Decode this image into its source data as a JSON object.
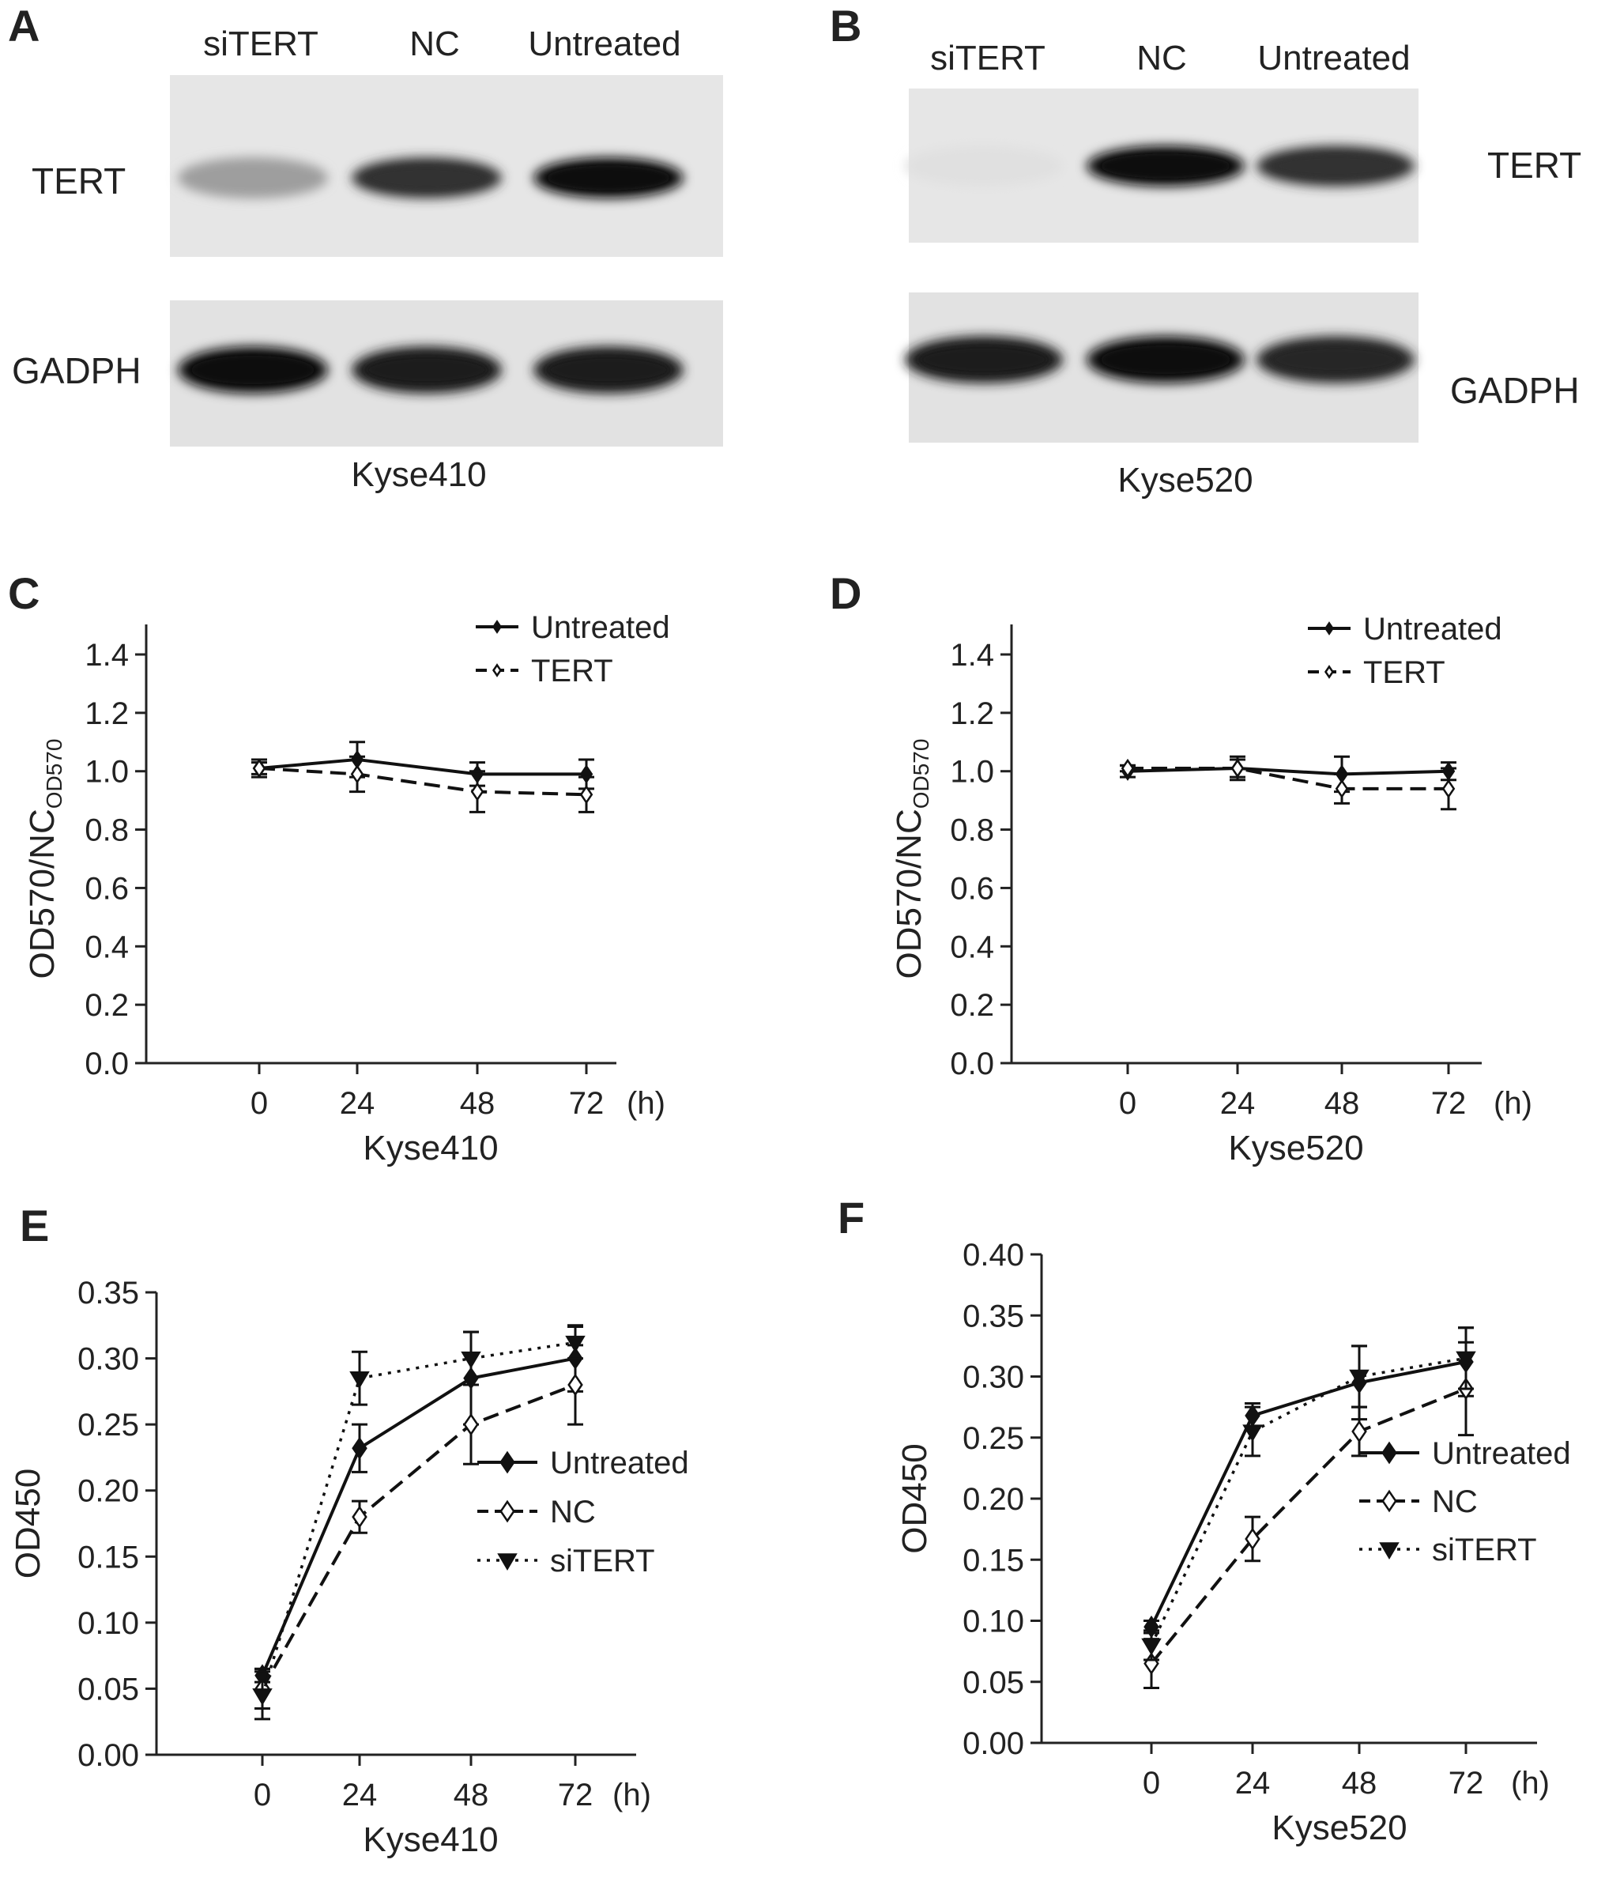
{
  "panels": {
    "A": {
      "letter": "A",
      "lanes": [
        "siTERT",
        "NC",
        "Untreated"
      ],
      "bands": [
        "TERT",
        "GADPH"
      ],
      "cell_line": "Kyse410",
      "band_intensity": {
        "TERT": [
          0.35,
          0.85,
          1.0
        ],
        "GADPH": [
          1.0,
          0.95,
          0.95
        ]
      }
    },
    "B": {
      "letter": "B",
      "lanes": [
        "siTERT",
        "NC",
        "Untreated"
      ],
      "bands": [
        "TERT",
        "GADPH"
      ],
      "cell_line": "Kyse520",
      "band_intensity": {
        "TERT": [
          0.05,
          1.0,
          0.85
        ],
        "GADPH": [
          0.95,
          1.0,
          0.9
        ]
      }
    }
  },
  "chart_data": [
    {
      "panel": "C",
      "type": "line",
      "x": [
        0,
        24,
        48,
        72
      ],
      "x_unit": "(h)",
      "xlabel": "Kyse410",
      "ylabel_main": "OD570/NC",
      "ylabel_sub": "OD570",
      "ylim": [
        0.0,
        1.4
      ],
      "yticks": [
        "0.0",
        "0.2",
        "0.4",
        "0.6",
        "0.8",
        "1.0",
        "1.2",
        "1.4"
      ],
      "grid": false,
      "legend_position": "top-right",
      "series": [
        {
          "name": "Untreated",
          "style": "solid",
          "marker": "filled-diamond",
          "values": [
            1.01,
            1.04,
            0.99,
            0.99
          ],
          "errors": [
            0.03,
            0.06,
            0.04,
            0.05
          ]
        },
        {
          "name": "TERT",
          "style": "dashed",
          "marker": "open-diamond",
          "values": [
            1.01,
            0.99,
            0.93,
            0.92
          ],
          "errors": [
            0.02,
            0.06,
            0.07,
            0.06
          ]
        }
      ]
    },
    {
      "panel": "D",
      "type": "line",
      "x": [
        0,
        24,
        48,
        72
      ],
      "x_unit": "(h)",
      "xlabel": "Kyse520",
      "ylabel_main": "OD570/NC",
      "ylabel_sub": "OD570",
      "ylim": [
        0.0,
        1.4
      ],
      "yticks": [
        "0.0",
        "0.2",
        "0.4",
        "0.6",
        "0.8",
        "1.0",
        "1.2",
        "1.4"
      ],
      "grid": false,
      "legend_position": "top-right",
      "series": [
        {
          "name": "Untreated",
          "style": "solid",
          "marker": "filled-diamond",
          "values": [
            1.0,
            1.01,
            0.99,
            1.0
          ],
          "errors": [
            0.02,
            0.03,
            0.06,
            0.03
          ]
        },
        {
          "name": "TERT",
          "style": "dashed",
          "marker": "open-diamond",
          "values": [
            1.01,
            1.01,
            0.94,
            0.94
          ],
          "errors": [
            0.01,
            0.04,
            0.05,
            0.07
          ]
        }
      ]
    },
    {
      "panel": "E",
      "type": "line",
      "x": [
        0,
        24,
        48,
        72
      ],
      "x_unit": "(h)",
      "xlabel": "Kyse410",
      "ylabel_main": "OD450",
      "ylabel_sub": "",
      "ylim": [
        0.0,
        0.35
      ],
      "yticks": [
        "0.00",
        "0.05",
        "0.10",
        "0.15",
        "0.20",
        "0.25",
        "0.30",
        "0.35"
      ],
      "grid": false,
      "legend_position": "bottom-right",
      "series": [
        {
          "name": "Untreated",
          "style": "solid",
          "marker": "filled-diamond",
          "values": [
            0.06,
            0.232,
            0.285,
            0.3
          ],
          "errors": [
            0.005,
            0.018,
            0.035,
            0.025
          ]
        },
        {
          "name": "NC",
          "style": "dashed",
          "marker": "open-diamond",
          "values": [
            0.05,
            0.18,
            0.25,
            0.28
          ],
          "errors": [
            0.015,
            0.012,
            0.03,
            0.03
          ]
        },
        {
          "name": "siTERT",
          "style": "dotted",
          "marker": "filled-triangle",
          "values": [
            0.045,
            0.285,
            0.3,
            0.312
          ],
          "errors": [
            0.018,
            0.02,
            0.02,
            0.012
          ]
        }
      ]
    },
    {
      "panel": "F",
      "type": "line",
      "x": [
        0,
        24,
        48,
        72
      ],
      "x_unit": "(h)",
      "xlabel": "Kyse520",
      "ylabel_main": "OD450",
      "ylabel_sub": "",
      "ylim": [
        0.0,
        0.4
      ],
      "yticks": [
        "0.00",
        "0.05",
        "0.10",
        "0.15",
        "0.20",
        "0.25",
        "0.30",
        "0.35",
        "0.40"
      ],
      "grid": false,
      "legend_position": "bottom-right",
      "series": [
        {
          "name": "Untreated",
          "style": "solid",
          "marker": "filled-diamond",
          "values": [
            0.095,
            0.268,
            0.295,
            0.312
          ],
          "errors": [
            0.005,
            0.01,
            0.03,
            0.028
          ]
        },
        {
          "name": "NC",
          "style": "dashed",
          "marker": "open-diamond",
          "values": [
            0.065,
            0.167,
            0.255,
            0.29
          ],
          "errors": [
            0.02,
            0.018,
            0.02,
            0.038
          ]
        },
        {
          "name": "siTERT",
          "style": "dotted",
          "marker": "filled-triangle",
          "values": [
            0.08,
            0.255,
            0.3,
            0.315
          ],
          "errors": [
            0.012,
            0.02,
            0.025,
            0.025
          ]
        }
      ]
    }
  ]
}
